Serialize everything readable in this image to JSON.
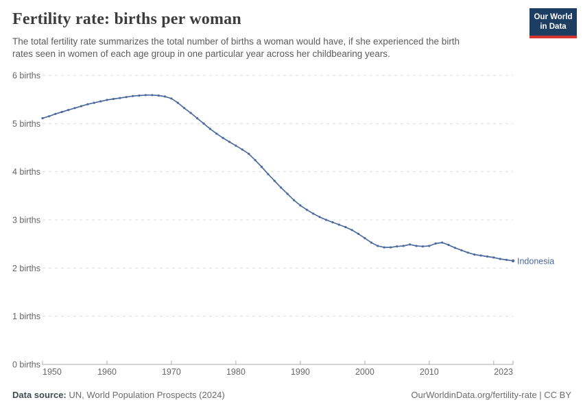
{
  "header": {
    "title": "Fertility rate: births per woman",
    "subtitle_lines": [
      "The total fertility rate summarizes the total number of births a woman would have, if she experienced the birth",
      "rates seen in women of each age group in one particular year across her childbearing years."
    ],
    "logo": {
      "line1": "Our World",
      "line2": "in Data"
    }
  },
  "footer": {
    "datasource_label": "Data source:",
    "datasource_value": "UN, World Population Prospects (2024)",
    "link": "OurWorldinData.org/fertility-rate | CC BY"
  },
  "colors": {
    "line": "#4c6a9e",
    "grid": "#dddddd",
    "axis": "#a8a8a8",
    "tick_text": "#666666",
    "logo_bg": "#1d3d63",
    "logo_red": "#d5352e"
  },
  "chart_data": {
    "type": "line",
    "title": "Fertility rate: births per woman",
    "entity": "Indonesia",
    "xlabel": "",
    "ylabel": "births",
    "start_year": 1950,
    "end_year": 2023,
    "xticks": [
      1950,
      1960,
      1970,
      1980,
      1990,
      2000,
      2010,
      2023
    ],
    "ylim": [
      0,
      6
    ],
    "ytick_suffix": " births",
    "grid": "horizontal-dashed",
    "legend_position": "end-of-line",
    "values": [
      5.11,
      5.15,
      5.2,
      5.24,
      5.28,
      5.32,
      5.36,
      5.4,
      5.43,
      5.46,
      5.49,
      5.51,
      5.53,
      5.55,
      5.57,
      5.58,
      5.59,
      5.59,
      5.58,
      5.56,
      5.52,
      5.43,
      5.32,
      5.22,
      5.11,
      5.0,
      4.89,
      4.79,
      4.7,
      4.62,
      4.54,
      4.46,
      4.37,
      4.24,
      4.1,
      3.95,
      3.81,
      3.67,
      3.54,
      3.41,
      3.3,
      3.21,
      3.13,
      3.06,
      3.0,
      2.95,
      2.9,
      2.85,
      2.79,
      2.71,
      2.62,
      2.53,
      2.46,
      2.43,
      2.43,
      2.45,
      2.46,
      2.49,
      2.46,
      2.45,
      2.46,
      2.51,
      2.53,
      2.48,
      2.42,
      2.37,
      2.32,
      2.28,
      2.26,
      2.24,
      2.22,
      2.19,
      2.17,
      2.15
    ]
  }
}
